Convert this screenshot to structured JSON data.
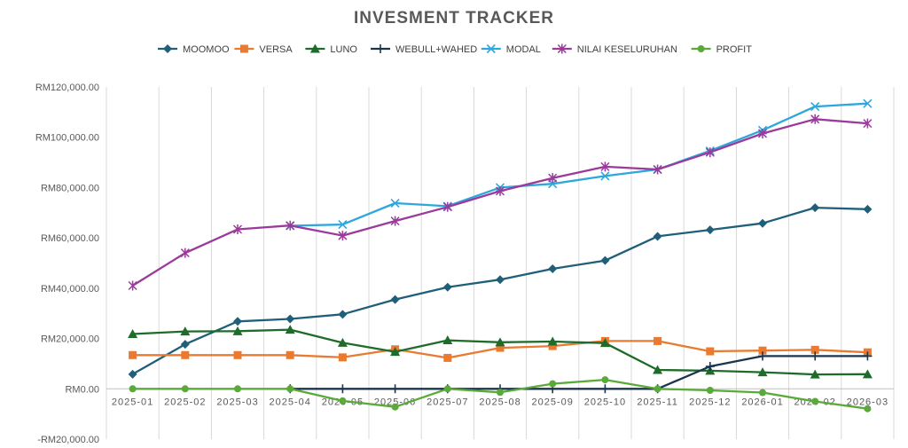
{
  "chart_data": {
    "type": "line",
    "title": "INVESMENT TRACKER",
    "categories": [
      "2025-01",
      "2025-02",
      "2025-03",
      "2025-04",
      "2025-05",
      "2025-06",
      "2025-07",
      "2025-08",
      "2025-09",
      "2025-10",
      "2025-11",
      "2025-12",
      "2026-01",
      "2026-02",
      "2026-03"
    ],
    "ylim": [
      -20000,
      120000
    ],
    "yticks": [
      {
        "value": 120000,
        "label": "RM120,000.00"
      },
      {
        "value": 100000,
        "label": "RM100,000.00"
      },
      {
        "value": 80000,
        "label": "RM80,000.00"
      },
      {
        "value": 60000,
        "label": "RM60,000.00"
      },
      {
        "value": 40000,
        "label": "RM40,000.00"
      },
      {
        "value": 20000,
        "label": "RM20,000.00"
      },
      {
        "value": 0,
        "label": "RM0.00"
      },
      {
        "value": -20000,
        "label": "-RM20,000.00",
        "color": "#ff0000"
      }
    ],
    "grid": "vertical",
    "legend_position": "top",
    "series": [
      {
        "name": "MOOMOO",
        "color": "#1f5f7a",
        "marker": "diamond",
        "values": [
          5800,
          17700,
          26800,
          27800,
          29600,
          35500,
          40400,
          43400,
          47700,
          51000,
          60600,
          63200,
          65800,
          72000,
          71400
        ]
      },
      {
        "name": "VERSA",
        "color": "#e97a30",
        "marker": "square",
        "values": [
          13400,
          13400,
          13400,
          13400,
          12500,
          15700,
          12300,
          16300,
          17000,
          19000,
          19000,
          14900,
          15200,
          15500,
          14500
        ]
      },
      {
        "name": "LUNO",
        "color": "#1e6b2a",
        "marker": "triangle",
        "values": [
          21800,
          22800,
          22900,
          23500,
          18300,
          14700,
          19300,
          18500,
          18800,
          18200,
          7500,
          7200,
          6600,
          5700,
          5800
        ]
      },
      {
        "name": "WEBULL+WAHED",
        "color": "#1a3550",
        "marker": "plus",
        "values": [
          null,
          null,
          null,
          0,
          0,
          0,
          0,
          0,
          0,
          0,
          0,
          8900,
          13000,
          13000,
          13000
        ]
      },
      {
        "name": "MODAL",
        "color": "#2ea7dc",
        "marker": "x",
        "values": [
          null,
          null,
          null,
          64800,
          65300,
          73800,
          72600,
          80000,
          81500,
          84600,
          87200,
          94600,
          102800,
          112200,
          113400
        ]
      },
      {
        "name": "NILAI KESELURUHAN",
        "color": "#9b3a9b",
        "marker": "star",
        "values": [
          41000,
          54000,
          63400,
          64900,
          60900,
          66700,
          72300,
          78600,
          83800,
          88300,
          87200,
          94000,
          101500,
          107200,
          105500
        ]
      },
      {
        "name": "PROFIT",
        "color": "#5aaa3a",
        "marker": "circle",
        "values": [
          0,
          0,
          0,
          0,
          -4800,
          -7200,
          0,
          -1400,
          2000,
          3600,
          0,
          -600,
          -1500,
          -5000,
          -7900
        ]
      }
    ]
  }
}
